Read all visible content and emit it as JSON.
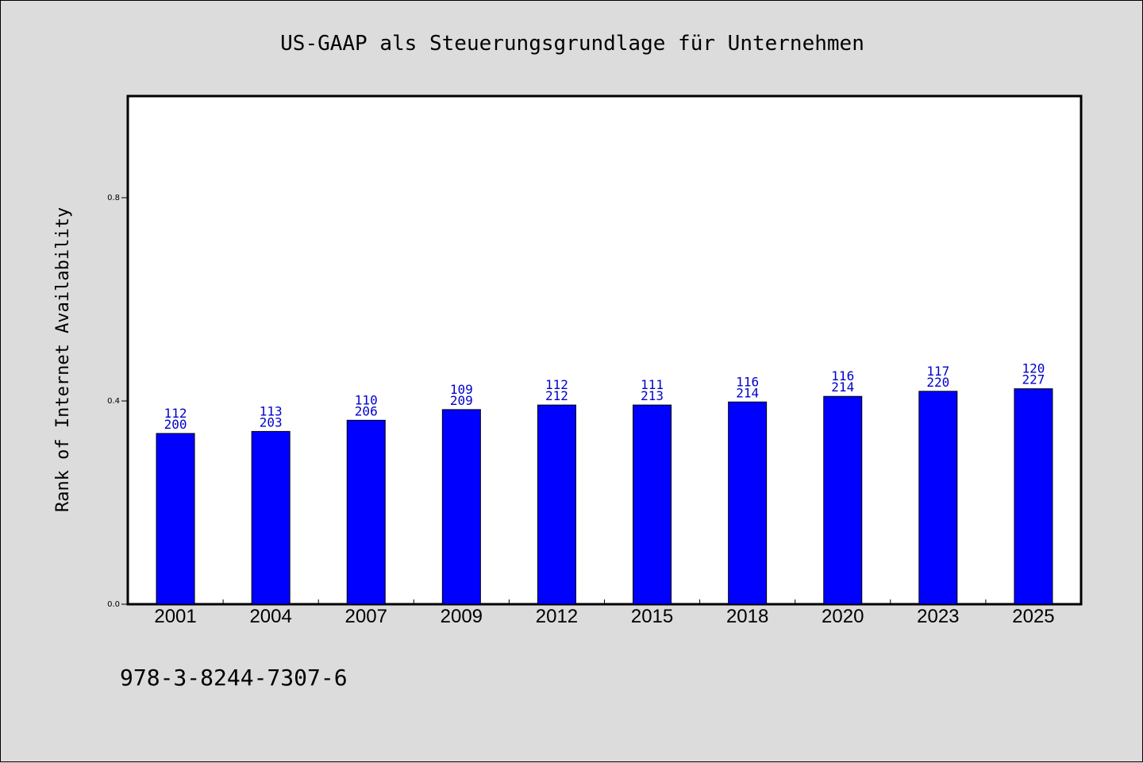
{
  "colors": {
    "background": "#dcdcdc",
    "plot_background": "#ffffff",
    "bar": "#0000ff",
    "data_label": "#0000cc"
  },
  "footer_text": "978-3-8244-7307-6",
  "chart_data": {
    "type": "bar",
    "title": "US-GAAP als Steuerungsgrundlage für Unternehmen",
    "xlabel": "",
    "ylabel": "Rank of Internet Availability",
    "ylim": [
      0,
      1.0
    ],
    "yticks": [
      0.0,
      0.4,
      0.8
    ],
    "ytick_labels": [
      "0.0",
      "0.4",
      "0.8"
    ],
    "grid": false,
    "categories": [
      "2001",
      "2004",
      "2007",
      "2009",
      "2012",
      "2015",
      "2018",
      "2020",
      "2023",
      "2025"
    ],
    "values": [
      0.336,
      0.34,
      0.362,
      0.383,
      0.392,
      0.392,
      0.398,
      0.409,
      0.419,
      0.424
    ],
    "label_top": [
      "112",
      "113",
      "110",
      "109",
      "112",
      "111",
      "116",
      "116",
      "117",
      "120"
    ],
    "label_bottom": [
      "200",
      "203",
      "206",
      "209",
      "212",
      "213",
      "214",
      "214",
      "220",
      "227"
    ]
  }
}
